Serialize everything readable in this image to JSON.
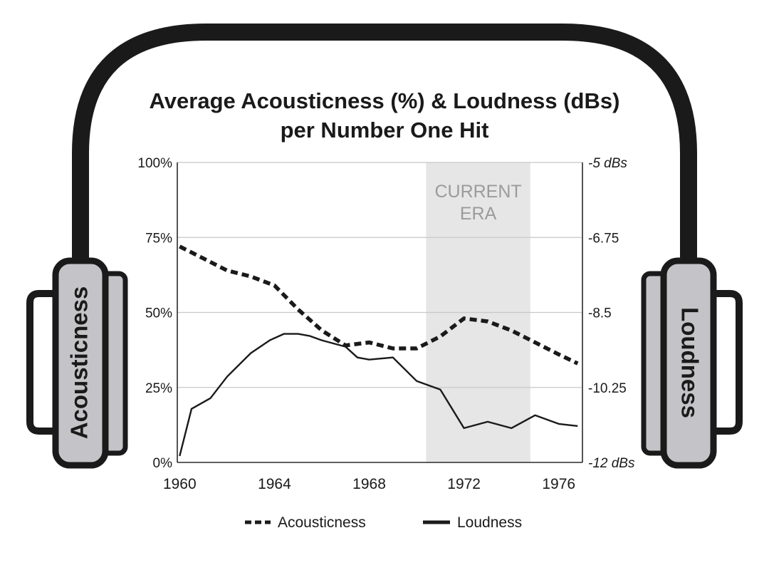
{
  "chart_data": {
    "type": "line",
    "title": [
      "Average Acousticness (%) & Loudness (dBs)",
      "per Number One Hit"
    ],
    "x_ticks": [
      "1960",
      "1964",
      "1968",
      "1972",
      "1976"
    ],
    "x_range": [
      1959.9,
      1977.0
    ],
    "y_left_ticks": [
      "0%",
      "25%",
      "50%",
      "75%",
      "100%"
    ],
    "y_left_range": [
      0,
      100
    ],
    "y_right_ticks": [
      "-12 dBs",
      "-10.25",
      "-8.5",
      "-6.75",
      "-5 dBs"
    ],
    "y_right_range": [
      -12,
      -5
    ],
    "highlight": {
      "label": [
        "CURRENT",
        "ERA"
      ],
      "x_start": 1970.4,
      "x_end": 1974.8
    },
    "series": [
      {
        "name": "Acousticness",
        "axis": "left",
        "style": "dashed",
        "x": [
          1960.0,
          1961.0,
          1962.0,
          1963.0,
          1964.0,
          1965.0,
          1966.0,
          1967.0,
          1968.0,
          1969.0,
          1970.0,
          1971.0,
          1972.0,
          1973.0,
          1974.0,
          1975.0,
          1976.0,
          1976.8
        ],
        "values": [
          72,
          68,
          64,
          62,
          59,
          51,
          44,
          39,
          40,
          38,
          38,
          42,
          48,
          47,
          44,
          40,
          36,
          33
        ]
      },
      {
        "name": "Loudness",
        "axis": "right",
        "style": "solid",
        "x": [
          1960.0,
          1960.5,
          1961.3,
          1962.0,
          1963.0,
          1963.8,
          1964.4,
          1965.0,
          1965.5,
          1966.0,
          1967.0,
          1967.5,
          1968.0,
          1969.0,
          1970.0,
          1971.0,
          1972.0,
          1973.0,
          1974.0,
          1975.0,
          1976.0,
          1976.8
        ],
        "values": [
          -11.85,
          -10.75,
          -10.5,
          -10.0,
          -9.45,
          -9.15,
          -9.0,
          -9.0,
          -9.05,
          -9.15,
          -9.3,
          -9.55,
          -9.6,
          -9.55,
          -10.1,
          -10.3,
          -11.2,
          -11.05,
          -11.2,
          -10.9,
          -11.1,
          -11.15
        ]
      }
    ],
    "legend": {
      "placement": "bottom-center",
      "items": [
        "Acousticness",
        "Loudness"
      ]
    },
    "grid": true,
    "decoration": {
      "ear_labels": {
        "left": "Acousticness",
        "right": "Loudness"
      }
    },
    "colors": {
      "ink": "#1a1a1a",
      "ear_fill": "#c4c4c8",
      "era_fill": "#e6e6e6",
      "era_text": "#9b9b9b",
      "grid": "#c8c8c8"
    }
  }
}
